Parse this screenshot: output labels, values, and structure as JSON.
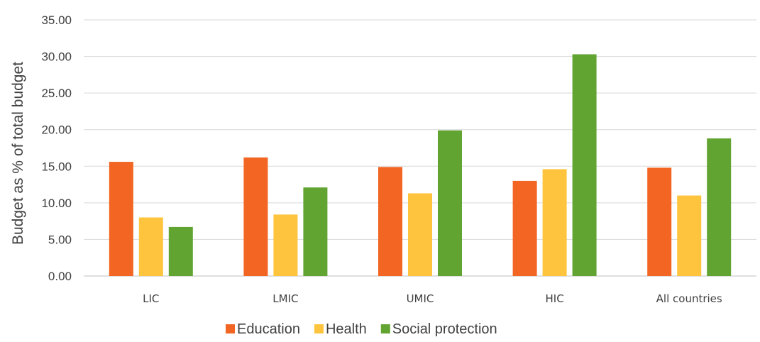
{
  "chart_data": {
    "type": "bar",
    "title": "",
    "xlabel": "",
    "ylabel": "Budget as % of total budget",
    "ylim": [
      0,
      35
    ],
    "ytick_step": 5,
    "ytick_labels": [
      "0.00",
      "5.00",
      "10.00",
      "15.00",
      "20.00",
      "25.00",
      "30.00",
      "35.00"
    ],
    "grid": true,
    "legend_position": "bottom-center",
    "categories": [
      "LIC",
      "LMIC",
      "UMIC",
      "HIC",
      "All countries"
    ],
    "series": [
      {
        "name": "Education",
        "color": "#F26522",
        "values": [
          15.6,
          16.2,
          14.9,
          13.0,
          14.8
        ]
      },
      {
        "name": "Health",
        "color": "#FFC43D",
        "values": [
          8.0,
          8.4,
          11.3,
          14.6,
          11.0
        ]
      },
      {
        "name": "Social protection",
        "color": "#62A432",
        "values": [
          6.7,
          12.1,
          19.9,
          30.3,
          18.8
        ]
      }
    ]
  }
}
